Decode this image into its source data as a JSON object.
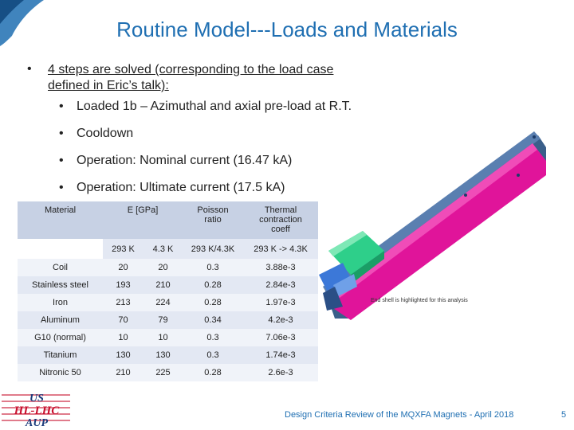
{
  "title": "Routine Model---Loads and Materials",
  "bullet_main": {
    "marker": "•",
    "line1": "4 steps are solved (corresponding to the load case",
    "line2": "defined in Eric’s talk):"
  },
  "sub_bullets": [
    {
      "marker": "•",
      "text": "Loaded 1b – Azimuthal and axial pre-load at R.T."
    },
    {
      "marker": "•",
      "text": "Cooldown"
    },
    {
      "marker": "•",
      "text": "Operation: Nominal current (16.47 kA)"
    },
    {
      "marker": "•",
      "text": "Operation: Ultimate current (17.5 kA)"
    }
  ],
  "table": {
    "header": {
      "material": "Material",
      "e": "E [GPa]",
      "poisson_l1": "Poisson",
      "poisson_l2": "ratio",
      "thermal_l1": "Thermal",
      "thermal_l2": "contraction",
      "thermal_l3": "coeff"
    },
    "subheader": [
      "293 K",
      "4.3 K",
      "293 K/4.3K",
      "293 K -> 4.3K"
    ],
    "rows": [
      [
        "Coil",
        "20",
        "20",
        "0.3",
        "3.88e-3"
      ],
      [
        "Stainless steel",
        "193",
        "210",
        "0.28",
        "2.84e-3"
      ],
      [
        "Iron",
        "213",
        "224",
        "0.28",
        "1.97e-3"
      ],
      [
        "Aluminum",
        "70",
        "79",
        "0.34",
        "4.2e-3"
      ],
      [
        "G10 (normal)",
        "10",
        "10",
        "0.3",
        "7.06e-3"
      ],
      [
        "Titanium",
        "130",
        "130",
        "0.3",
        "1.74e-3"
      ],
      [
        "Nitronic 50",
        "210",
        "225",
        "0.28",
        "2.6e-3"
      ]
    ]
  },
  "caption": "End shell is highlighted for this analysis",
  "footer": "Design Criteria Review of the MQXFA Magnets - April 2018",
  "page_number": "5",
  "logo": {
    "line1": "US",
    "line2": "HL-LHC",
    "line3": "AUP"
  },
  "colors": {
    "title": "#1f6fb2",
    "header_fill": "#c7d1e4",
    "row_fill": "#e3e8f3",
    "magenta": "#e0149a",
    "green": "#2ecf8a"
  }
}
